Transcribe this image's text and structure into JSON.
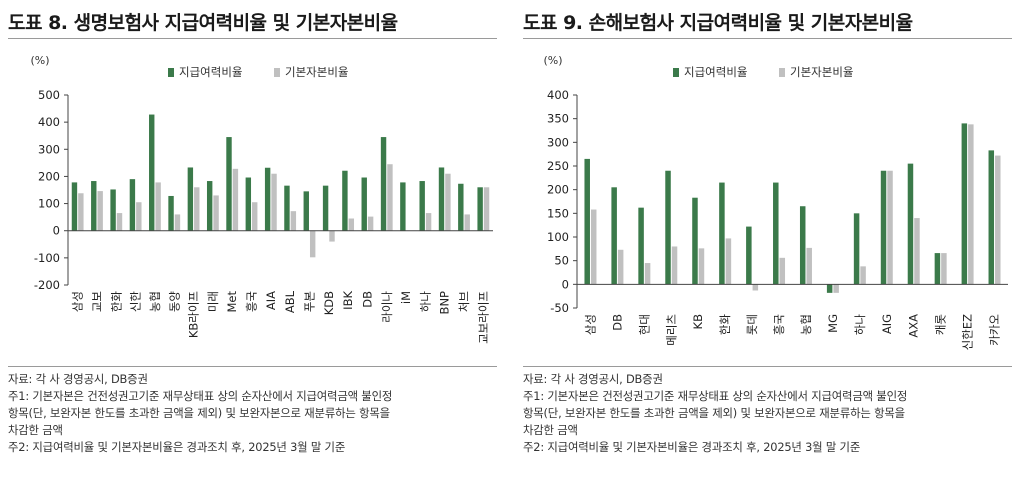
{
  "chart_data": [
    {
      "type": "bar",
      "title": "도표 8. 생명보험사 지급여력비율 및 기본자본비율",
      "unit_label": "(%)",
      "ylim": [
        -200,
        500
      ],
      "yticks": [
        -200,
        -100,
        0,
        100,
        200,
        300,
        400,
        500
      ],
      "ytick_labels": [
        "-200",
        "-100",
        "0",
        "100",
        "200",
        "300",
        "400",
        "500"
      ],
      "categories": [
        "삼성",
        "교보",
        "한화",
        "신한",
        "농협",
        "동양",
        "KB라이프",
        "미래",
        "Met",
        "흥국",
        "AIA",
        "ABL",
        "푸본",
        "KDB",
        "IBK",
        "DB",
        "라이나",
        "iM",
        "하나",
        "BNP",
        "처브",
        "교보라이프"
      ],
      "series": [
        {
          "name": "지급여력비율",
          "color": "#3b7a4a",
          "values": [
            178,
            183,
            152,
            190,
            428,
            128,
            233,
            183,
            345,
            196,
            232,
            166,
            145,
            166,
            221,
            196,
            345,
            178,
            183,
            233,
            173,
            160
          ]
        },
        {
          "name": "기본자본비율",
          "color": "#c0c0c0",
          "values": [
            138,
            146,
            65,
            105,
            178,
            60,
            160,
            130,
            228,
            105,
            210,
            72,
            -98,
            -40,
            45,
            52,
            245,
            0,
            65,
            210,
            60,
            160
          ]
        }
      ],
      "legend_position": "top",
      "notes": [
        "자료: 각 사 경영공시, DB증권",
        "주1: 기본자본은 건전성권고기준 재무상태표 상의 순자산에서 지급여력금액 불인정",
        "항목(단, 보완자본 한도를 초과한 금액을 제외) 및 보완자본으로 재분류하는 항목을",
        "차감한 금액",
        "주2: 지급여력비율 및 기본자본비율은 경과조치 후, 2025년 3월 말 기준"
      ]
    },
    {
      "type": "bar",
      "title": "도표 9. 손해보험사 지급여력비율 및 기본자본비율",
      "unit_label": "(%)",
      "ylim": [
        -50,
        400
      ],
      "yticks": [
        -50,
        0,
        50,
        100,
        150,
        200,
        250,
        300,
        350,
        400
      ],
      "ytick_labels": [
        "-50",
        "0",
        "50",
        "100",
        "150",
        "200",
        "250",
        "300",
        "350",
        "400"
      ],
      "categories": [
        "삼성",
        "DB",
        "현대",
        "메리츠",
        "KB",
        "한화",
        "롯데",
        "흥국",
        "농협",
        "MG",
        "하나",
        "AIG",
        "AXA",
        "캐롯",
        "신한EZ",
        "카카오"
      ],
      "series": [
        {
          "name": "지급여력비율",
          "color": "#3b7a4a",
          "values": [
            265,
            205,
            162,
            240,
            183,
            215,
            122,
            215,
            165,
            -18,
            150,
            240,
            255,
            66,
            340,
            283
          ]
        },
        {
          "name": "기본자본비율",
          "color": "#c0c0c0",
          "values": [
            158,
            73,
            45,
            80,
            76,
            97,
            -13,
            56,
            77,
            -18,
            38,
            240,
            140,
            66,
            338,
            272
          ]
        }
      ],
      "legend_position": "top",
      "notes": [
        "자료: 각 사 경영공시, DB증권",
        "주1: 기본자본은 건전성권고기준 재무상태표 상의 순자산에서 지급여력금액 불인정",
        "항목(단, 보완자본 한도를 초과한 금액을 제외) 및 보완자본으로 재분류하는 항목을",
        "차감한 금액",
        "주2: 지급여력비율 및 기본자본비율은 경과조치 후, 2025년 3월 말 기준"
      ]
    }
  ]
}
